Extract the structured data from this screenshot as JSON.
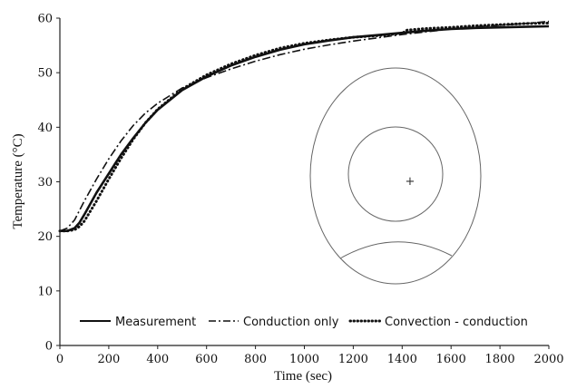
{
  "chart_data": {
    "type": "line",
    "title": "",
    "xlabel": "Time (sec)",
    "ylabel": "Temperature (°C)",
    "xlim": [
      0,
      2000
    ],
    "ylim": [
      0,
      60
    ],
    "xticks": [
      0,
      200,
      400,
      600,
      800,
      1000,
      1200,
      1400,
      1600,
      1800,
      2000
    ],
    "yticks": [
      0,
      10,
      20,
      30,
      40,
      50,
      60
    ],
    "grid": false,
    "legend_position": "bottom-left",
    "series": [
      {
        "name": "Measurement",
        "style": "solid",
        "color": "#111111",
        "x": [
          0,
          30,
          60,
          80,
          100,
          150,
          200,
          250,
          300,
          350,
          400,
          500,
          600,
          700,
          800,
          900,
          1000,
          1100,
          1200,
          1300,
          1400,
          1500,
          1600,
          1700,
          1800,
          1900,
          2000
        ],
        "y": [
          21,
          21,
          21.5,
          22.5,
          24,
          28,
          31.5,
          35,
          38,
          40.8,
          43.2,
          46.8,
          49.3,
          51.3,
          52.9,
          54.2,
          55.2,
          55.9,
          56.5,
          56.9,
          57.3,
          57.7,
          58,
          58.2,
          58.3,
          58.4,
          58.5
        ]
      },
      {
        "name": "Conduction only",
        "style": "dashdot",
        "color": "#111111",
        "x": [
          0,
          30,
          60,
          100,
          150,
          200,
          250,
          300,
          350,
          400,
          500,
          600,
          700,
          800,
          900,
          1000,
          1100,
          1200,
          1300,
          1400,
          1500,
          1600,
          1700,
          1800,
          1900,
          2000
        ],
        "y": [
          21,
          21.5,
          23,
          26.5,
          30.5,
          34.2,
          37.5,
          40.3,
          42.6,
          44.4,
          47.2,
          49.1,
          50.7,
          52.1,
          53.3,
          54.3,
          55.1,
          55.8,
          56.4,
          57,
          57.5,
          58,
          58.4,
          58.7,
          59,
          59.4
        ]
      },
      {
        "name": "Convection - conduction",
        "style": "dotted",
        "color": "#111111",
        "x": [
          0,
          30,
          60,
          80,
          100,
          150,
          200,
          250,
          300,
          350,
          400,
          500,
          600,
          700,
          800,
          900,
          1000,
          1100,
          1200,
          1300,
          1400,
          1420,
          1500,
          1600,
          1700,
          1800,
          1900,
          2000
        ],
        "y": [
          21,
          21,
          21.2,
          21.8,
          22.8,
          26.5,
          30.5,
          34.3,
          37.8,
          40.8,
          43.3,
          47,
          49.6,
          51.6,
          53.2,
          54.5,
          55.4,
          56,
          56.5,
          56.8,
          57.2,
          57.8,
          58.1,
          58.3,
          58.6,
          58.8,
          59,
          59.1
        ]
      }
    ],
    "inset": {
      "marker": "+"
    }
  }
}
